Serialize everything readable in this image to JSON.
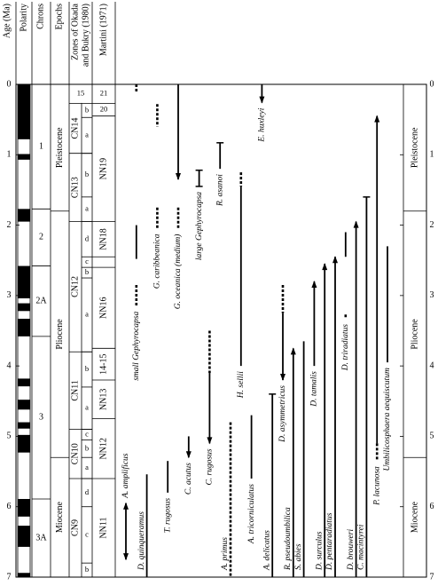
{
  "chart_data": {
    "type": "range_chart",
    "ylim": [
      0,
      7
    ],
    "yticks": [
      0,
      1,
      2,
      3,
      4,
      5,
      6,
      7
    ],
    "headers": {
      "age": "Age (Ma)",
      "polarity": "Polarity",
      "chrons": "Chrons",
      "epochs": "Epochs",
      "okada": [
        "Zones of Okada",
        "and Bukry (1980)"
      ],
      "martini": "Martini (1971)"
    },
    "polarity_normal": [
      [
        0,
        0.78
      ],
      [
        0.99,
        1.07
      ],
      [
        1.77,
        1.95
      ],
      [
        2.58,
        3.04
      ],
      [
        3.11,
        3.22
      ],
      [
        3.33,
        3.58
      ],
      [
        4.18,
        4.29
      ],
      [
        4.48,
        4.62
      ],
      [
        4.8,
        4.89
      ],
      [
        4.98,
        5.23
      ],
      [
        5.89,
        6.14
      ],
      [
        6.27,
        6.57
      ],
      [
        6.94,
        7
      ]
    ],
    "chrons": [
      {
        "name": "1",
        "top": 0,
        "base": 1.77
      },
      {
        "name": "2",
        "top": 1.77,
        "base": 2.58
      },
      {
        "name": "2A",
        "top": 2.58,
        "base": 3.58
      },
      {
        "name": "3",
        "top": 3.58,
        "base": 5.89
      },
      {
        "name": "3A",
        "top": 5.89,
        "base": 7
      }
    ],
    "epochs": [
      {
        "name": "Pleistocene",
        "top": 0,
        "base": 1.8
      },
      {
        "name": "Pliocene",
        "top": 1.8,
        "base": 5.3
      },
      {
        "name": "Miocene",
        "top": 5.3,
        "base": 7
      }
    ],
    "okada_zones": [
      {
        "name": "15",
        "top": 0,
        "base": 0.27,
        "subzones": []
      },
      {
        "name": "CN14",
        "top": 0.27,
        "base": 0.98,
        "subzones": [
          {
            "name": "b",
            "top": 0.27,
            "base": 0.47
          },
          {
            "name": "a",
            "top": 0.47,
            "base": 0.98
          }
        ]
      },
      {
        "name": "CN13",
        "top": 0.98,
        "base": 1.95,
        "subzones": [
          {
            "name": "b",
            "top": 0.98,
            "base": 1.6
          },
          {
            "name": "a",
            "top": 1.6,
            "base": 1.95
          }
        ]
      },
      {
        "name": "CN12",
        "top": 1.95,
        "base": 3.8,
        "subzones": [
          {
            "name": "d",
            "top": 1.95,
            "base": 2.45
          },
          {
            "name": "c",
            "top": 2.45,
            "base": 2.6
          },
          {
            "name": "b",
            "top": 2.6,
            "base": 2.75
          },
          {
            "name": "a",
            "top": 2.75,
            "base": 3.8
          }
        ]
      },
      {
        "name": "CN11",
        "top": 3.8,
        "base": 4.9,
        "subzones": [
          {
            "name": "b",
            "top": 3.8,
            "base": 4.3
          },
          {
            "name": "a",
            "top": 4.3,
            "base": 4.9
          }
        ]
      },
      {
        "name": "CN10",
        "top": 4.9,
        "base": 5.6,
        "subzones": [
          {
            "name": "c",
            "top": 4.9,
            "base": 5.05
          },
          {
            "name": "b",
            "top": 5.05,
            "base": 5.3
          },
          {
            "name": "a",
            "top": 5.3,
            "base": 5.6
          }
        ]
      },
      {
        "name": "CN9",
        "top": 5.6,
        "base": 7,
        "subzones": [
          {
            "name": "d",
            "top": 5.6,
            "base": 6.0
          },
          {
            "name": "c",
            "top": 6.0,
            "base": 6.8
          },
          {
            "name": "b",
            "top": 6.8,
            "base": 7
          }
        ]
      }
    ],
    "martini_zones": [
      {
        "name": "21",
        "top": 0,
        "base": 0.27
      },
      {
        "name": "20",
        "top": 0.27,
        "base": 0.45
      },
      {
        "name": "NN19",
        "top": 0.45,
        "base": 1.95
      },
      {
        "name": "NN18",
        "top": 1.95,
        "base": 2.45
      },
      {
        "name": null,
        "top": 2.45,
        "base": 2.6
      },
      {
        "name": "NN16",
        "top": 2.6,
        "base": 3.75
      },
      {
        "name": "14-15",
        "top": 3.75,
        "base": 4.2
      },
      {
        "name": "NN13",
        "top": 4.2,
        "base": 4.75
      },
      {
        "name": "NN12",
        "top": 4.75,
        "base": 5.6
      },
      {
        "name": "NN11",
        "top": 5.6,
        "base": 7
      }
    ],
    "taxa": [
      {
        "name": "A. amplificus",
        "segments": [
          {
            "top": 5.95,
            "base": 6.75,
            "style": "solid",
            "top_end": "arrow",
            "base_end": "arrow"
          }
        ]
      },
      {
        "name": "small Gephyrocapsa",
        "segments": [
          {
            "top": 0,
            "base": 0.12,
            "style": "dashed"
          },
          {
            "top": 2.0,
            "base": 2.48,
            "style": "solid"
          },
          {
            "top": 2.85,
            "base": 3.15,
            "style": "dashed"
          }
        ]
      },
      {
        "name": "D. quinqueramus",
        "segments": [
          {
            "top": 5.54,
            "base": 7,
            "style": "solid"
          }
        ]
      },
      {
        "name": "G. caribbeanica",
        "segments": [
          {
            "top": 0.28,
            "base": 0.6,
            "style": "dashed"
          },
          {
            "top": 1.75,
            "base": 2.05,
            "style": "dashed"
          }
        ]
      },
      {
        "name": "T. rugosus",
        "segments": [
          {
            "top": 5.35,
            "base": 5.8,
            "style": "solid"
          }
        ]
      },
      {
        "name": "G. oceanica (medium)",
        "segments": [
          {
            "top": 0,
            "base": 1.35,
            "style": "solid",
            "base_end": "arrow"
          },
          {
            "top": 1.75,
            "base": 2.05,
            "style": "dashed"
          }
        ]
      },
      {
        "name": "C. acutus",
        "segments": [
          {
            "top": 5.0,
            "base": 5.3,
            "style": "solid",
            "base_end": "arrow"
          }
        ]
      },
      {
        "name": "large Gephyrocapsa",
        "segments": [
          {
            "top": 1.22,
            "base": 1.45,
            "style": "solid",
            "top_end": "cap",
            "base_end": "cap"
          }
        ]
      },
      {
        "name": "C. rugosus",
        "segments": [
          {
            "top": 3.5,
            "base": 4.1,
            "style": "dashed"
          },
          {
            "top": 4.1,
            "base": 5.1,
            "style": "solid",
            "base_end": "arrow"
          }
        ]
      },
      {
        "name": "R. asanoi",
        "segments": [
          {
            "top": 0.83,
            "base": 1.2,
            "style": "solid",
            "top_end": "cap"
          }
        ]
      },
      {
        "name": "A. primus",
        "segments": [
          {
            "top": 4.8,
            "base": 7,
            "style": "dashed"
          }
        ]
      },
      {
        "name": "H. sellii",
        "segments": [
          {
            "top": 1.25,
            "base": 1.45,
            "style": "dashed"
          },
          {
            "top": 1.45,
            "base": 4.0,
            "style": "solid"
          }
        ]
      },
      {
        "name": "A. tricorniculatus",
        "segments": [
          {
            "top": 4.7,
            "base": 5.6,
            "style": "solid"
          }
        ]
      },
      {
        "name": "E. huxleyi",
        "segments": [
          {
            "top": 0,
            "base": 0.26,
            "style": "solid",
            "base_end": "arrow"
          }
        ]
      },
      {
        "name": "A. delicatus",
        "segments": [
          {
            "top": 4.4,
            "base": 7,
            "style": "solid",
            "top_end": "cap"
          }
        ]
      },
      {
        "name": "D. asymmetricus",
        "segments": [
          {
            "top": 2.85,
            "base": 3.25,
            "style": "dashed"
          },
          {
            "top": 3.25,
            "base": 4.2,
            "style": "solid",
            "base_end": "arrow"
          }
        ]
      },
      {
        "name": "R. pseudoumbilica",
        "segments": [
          {
            "top": 3.75,
            "base": 7,
            "style": "solid",
            "top_end": "arrow"
          }
        ]
      },
      {
        "name": "S. abies",
        "segments": [
          {
            "top": 3.65,
            "base": 7,
            "style": "solid"
          }
        ]
      },
      {
        "name": "D. tamalis",
        "segments": [
          {
            "top": 2.8,
            "base": 4.0,
            "style": "solid",
            "top_end": "arrow"
          }
        ]
      },
      {
        "name": "D. surculus",
        "segments": [
          {
            "top": 2.55,
            "base": 7,
            "style": "solid",
            "top_end": "arrow"
          }
        ]
      },
      {
        "name": "D. pentaradiatus",
        "segments": [
          {
            "top": 2.45,
            "base": 7,
            "style": "solid",
            "top_end": "arrow"
          }
        ]
      },
      {
        "name": "D. triradiatus",
        "segments": [
          {
            "top": 2.1,
            "base": 2.45,
            "style": "solid"
          },
          {
            "top": 3.27,
            "base": 3.33,
            "style": "dashed"
          }
        ]
      },
      {
        "name": "D. brouweri",
        "segments": [
          {
            "top": 1.95,
            "base": 7,
            "style": "solid",
            "top_end": "arrow"
          }
        ]
      },
      {
        "name": "C. macintyrei",
        "segments": [
          {
            "top": 1.6,
            "base": 7,
            "style": "solid",
            "top_end": "cap"
          }
        ]
      },
      {
        "name": "P. lacunosa",
        "segments": [
          {
            "top": 0.45,
            "base": 5.1,
            "style": "solid",
            "top_end": "arrow"
          },
          {
            "top": 5.1,
            "base": 5.35,
            "style": "dashed"
          }
        ]
      },
      {
        "name": "Umbilicosphaera aequiscutum",
        "segments": [
          {
            "top": 2.3,
            "base": 3.95,
            "style": "solid"
          }
        ]
      }
    ]
  }
}
